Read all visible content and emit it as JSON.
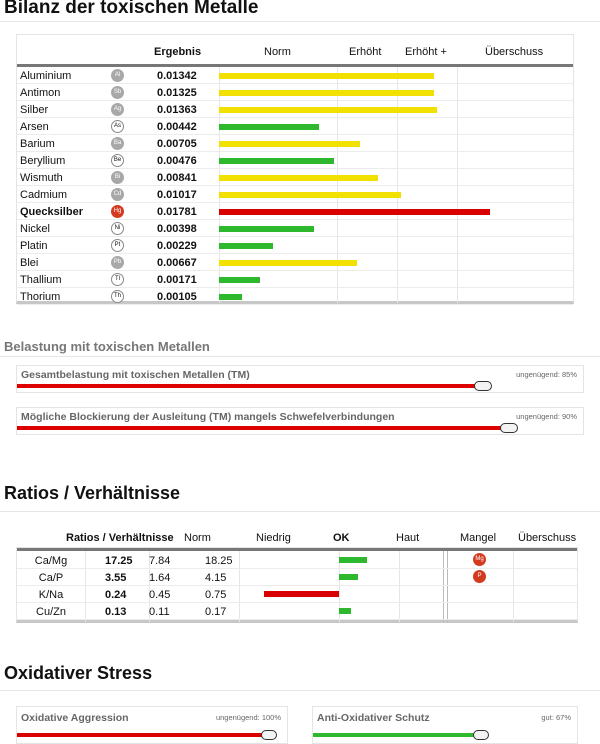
{
  "colors": {
    "green": "#2eb82e",
    "yellow": "#f2e000",
    "red": "#d90000",
    "badge_red": "#d43a1f"
  },
  "metals": {
    "title": "Bilanz der toxischen Metalle",
    "headers": {
      "result": "Ergebnis",
      "norm": "Norm",
      "elevated": "Erhöht",
      "elevated_plus": "Erhöht +",
      "excess": "Überschuss"
    },
    "rows": [
      {
        "name": "Aluminium",
        "symbol": "Al",
        "value": "0.01342",
        "level": 0.84,
        "color": "yellow",
        "badge": "grey",
        "bold": false
      },
      {
        "name": "Antimon",
        "symbol": "Sb",
        "value": "0.01325",
        "level": 0.84,
        "color": "yellow",
        "badge": "grey",
        "bold": false
      },
      {
        "name": "Silber",
        "symbol": "Ag",
        "value": "0.01363",
        "level": 0.85,
        "color": "yellow",
        "badge": "grey",
        "bold": false
      },
      {
        "name": "Arsen",
        "symbol": "As",
        "value": "0.00442",
        "level": 0.39,
        "color": "green",
        "badge": "outline",
        "bold": false
      },
      {
        "name": "Barium",
        "symbol": "Ba",
        "value": "0.00705",
        "level": 0.55,
        "color": "yellow",
        "badge": "grey",
        "bold": false
      },
      {
        "name": "Beryllium",
        "symbol": "Be",
        "value": "0.00476",
        "level": 0.45,
        "color": "green",
        "badge": "outline",
        "bold": false
      },
      {
        "name": "Wismuth",
        "symbol": "Bi",
        "value": "0.00841",
        "level": 0.62,
        "color": "yellow",
        "badge": "grey",
        "bold": false
      },
      {
        "name": "Cadmium",
        "symbol": "Cd",
        "value": "0.01017",
        "level": 0.71,
        "color": "yellow",
        "badge": "grey",
        "bold": false
      },
      {
        "name": "Quecksilber",
        "symbol": "Hg",
        "value": "0.01781",
        "level": 1.06,
        "color": "red",
        "badge": "red",
        "bold": true
      },
      {
        "name": "Nickel",
        "symbol": "Ni",
        "value": "0.00398",
        "level": 0.37,
        "color": "green",
        "badge": "outline",
        "bold": false
      },
      {
        "name": "Platin",
        "symbol": "Pt",
        "value": "0.00229",
        "level": 0.21,
        "color": "green",
        "badge": "outline",
        "bold": false
      },
      {
        "name": "Blei",
        "symbol": "Pb",
        "value": "0.00667",
        "level": 0.54,
        "color": "yellow",
        "badge": "grey",
        "bold": false
      },
      {
        "name": "Thallium",
        "symbol": "Tl",
        "value": "0.00171",
        "level": 0.16,
        "color": "green",
        "badge": "outline",
        "bold": false
      },
      {
        "name": "Thorium",
        "symbol": "Th",
        "value": "0.00105",
        "level": 0.09,
        "color": "green",
        "badge": "outline",
        "bold": false
      }
    ]
  },
  "load": {
    "title": "Belastung mit toxischen Metallen",
    "items": [
      {
        "label": "Gesamtbelastung mit toxischen Metallen (TM)",
        "status": "ungenügend: 85%",
        "percent": 85
      },
      {
        "label": "Mögliche Blockierung der Ausleitung (TM) mangels Schwefelverbindungen",
        "status": "ungenügend: 90%",
        "percent": 90
      }
    ]
  },
  "ratios": {
    "title": "Ratios / Verhältnisse",
    "headers": {
      "ratio": "Ratios / Verhältnisse",
      "norm": "Norm",
      "low": "Niedrig",
      "ok": "OK",
      "high": "Haut",
      "deficiency": "Mangel",
      "excess": "Überschuss"
    },
    "rows": [
      {
        "name": "Ca/Mg",
        "value": "17.25",
        "norm_low": "7.84",
        "norm_high": "18.25",
        "side": "right",
        "magnitude": 0.3,
        "color": "green",
        "badge": "Mg"
      },
      {
        "name": "Ca/P",
        "value": "3.55",
        "norm_low": "1.64",
        "norm_high": "4.15",
        "side": "right",
        "magnitude": 0.2,
        "color": "green",
        "badge": "P"
      },
      {
        "name": "K/Na",
        "value": "0.24",
        "norm_low": "0.45",
        "norm_high": "0.75",
        "side": "left",
        "magnitude": 0.8,
        "color": "red",
        "badge": ""
      },
      {
        "name": "Cu/Zn",
        "value": "0.13",
        "norm_low": "0.11",
        "norm_high": "0.17",
        "side": "right",
        "magnitude": 0.13,
        "color": "green",
        "badge": ""
      }
    ]
  },
  "oxidative": {
    "title": "Oxidativer Stress",
    "items": [
      {
        "label": "Oxidative Aggression",
        "status": "ungenügend: 100%",
        "percent": 100,
        "color": "red"
      },
      {
        "label": "Anti-Oxidativer Schutz",
        "status": "gut: 67%",
        "percent": 67,
        "color": "green"
      }
    ]
  }
}
